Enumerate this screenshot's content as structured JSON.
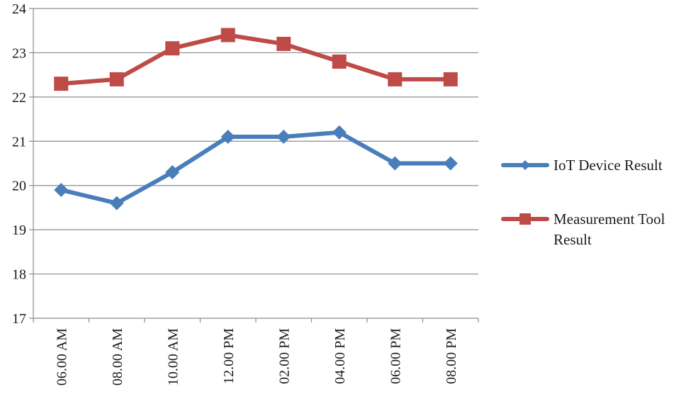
{
  "chart_data": {
    "type": "line",
    "title": "",
    "xlabel": "",
    "ylabel": "",
    "categories": [
      "06.00 AM",
      "08.00 AM",
      "10.00 AM",
      "12.00 PM",
      "02.00 PM",
      "04.00 PM",
      "06.00 PM",
      "08.00 PM"
    ],
    "ylim": [
      17,
      24
    ],
    "yticks": [
      "17",
      "18",
      "19",
      "20",
      "21",
      "22",
      "23",
      "24"
    ],
    "grid": "horizontal",
    "legend_position": "right",
    "series": [
      {
        "name": "IoT Device Result",
        "legend_lines": [
          "IoT Device Result"
        ],
        "marker": "diamond",
        "color": "#4a7ebb",
        "values": [
          19.9,
          19.6,
          20.3,
          21.1,
          21.1,
          21.2,
          20.5,
          20.5
        ]
      },
      {
        "name": "Measurement Tool Result",
        "legend_lines": [
          "Measurement Tool",
          "Result"
        ],
        "marker": "square",
        "color": "#be4b48",
        "values": [
          22.3,
          22.4,
          23.1,
          23.4,
          23.2,
          22.8,
          22.4,
          22.4
        ]
      }
    ]
  }
}
